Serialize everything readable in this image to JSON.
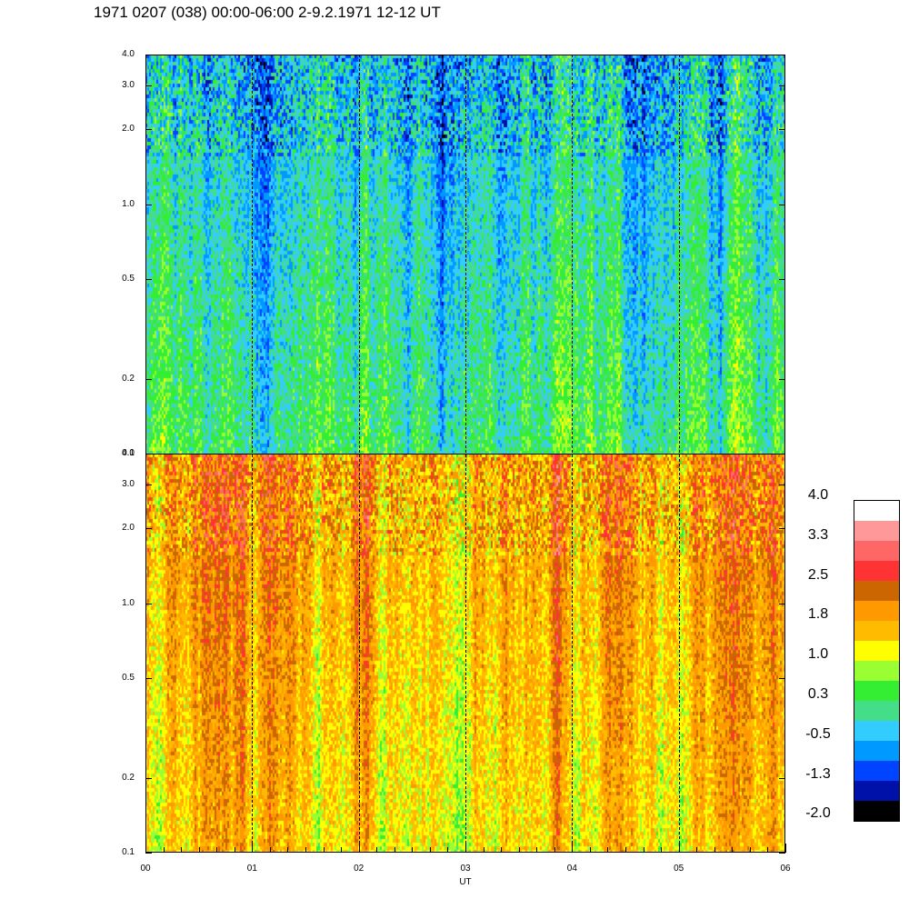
{
  "title": "1971 0207 (038) 00:00-06:00 2-9.2.1971  12-12 UT",
  "chart_data": [
    {
      "type": "heatmap",
      "panel": "top",
      "x": {
        "label": "UT",
        "ticks": [
          "00",
          "01",
          "02",
          "03",
          "04",
          "05",
          "06"
        ],
        "range": [
          0,
          6
        ]
      },
      "y": {
        "scale": "log",
        "range": [
          0.1,
          4.0
        ],
        "ticks": [
          "0.1",
          "0.2",
          "0.5",
          "1.0",
          "2.0",
          "3.0",
          "4.0"
        ],
        "tick_values": [
          0.1,
          0.2,
          0.5,
          1.0,
          2.0,
          3.0,
          4.0
        ]
      },
      "dominant_level_range": [
        -1.3,
        1.0
      ],
      "dashed_vertical_lines_at": [
        1,
        2,
        3,
        4,
        5
      ]
    },
    {
      "type": "heatmap",
      "panel": "bottom",
      "x": {
        "label": "UT",
        "ticks": [
          "00",
          "01",
          "02",
          "03",
          "04",
          "05",
          "06"
        ],
        "range": [
          0,
          6
        ]
      },
      "y": {
        "scale": "log",
        "range": [
          0.1,
          4.0
        ],
        "ticks": [
          "0.1",
          "0.2",
          "0.5",
          "1.0",
          "2.0",
          "3.0",
          "4.0"
        ],
        "tick_values": [
          0.1,
          0.2,
          0.5,
          1.0,
          2.0,
          3.0,
          4.0
        ]
      },
      "dominant_level_range": [
        0.3,
        2.5
      ],
      "dashed_vertical_lines_at": [
        1,
        2,
        3,
        4,
        5
      ]
    }
  ],
  "colorbar": {
    "labels": [
      "4.0",
      "3.3",
      "2.5",
      "1.8",
      "1.0",
      "0.3",
      "-0.5",
      "-1.3",
      "-2.0"
    ],
    "colors": [
      "#ffffff",
      "#ff9999",
      "#ff6666",
      "#ff3333",
      "#cc6600",
      "#ff9900",
      "#ffbb00",
      "#ffff00",
      "#99ff33",
      "#33ee33",
      "#44dd88",
      "#33ccff",
      "#0099ff",
      "#0044ff",
      "#0011aa",
      "#000000"
    ]
  },
  "xaxis_label": "UT"
}
